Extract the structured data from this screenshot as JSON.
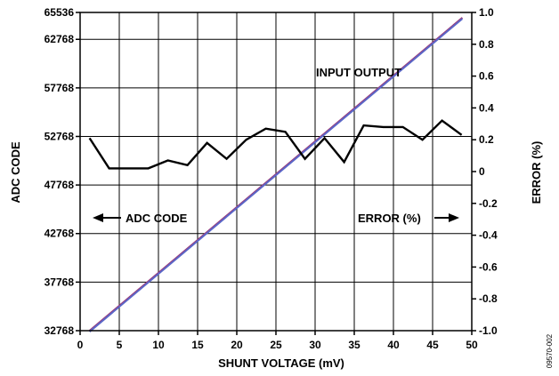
{
  "chart_data": {
    "type": "line",
    "title": "",
    "xlabel": "SHUNT VOLTAGE (mV)",
    "ylabel": "ADC CODE",
    "y2label": "ERROR (%)",
    "xlim": [
      0,
      50
    ],
    "ylim": [
      32768,
      65536
    ],
    "y2lim": [
      -1.0,
      1.0
    ],
    "grid": true,
    "x_ticks": [
      "0",
      "5",
      "10",
      "15",
      "20",
      "25",
      "30",
      "35",
      "40",
      "45",
      "50"
    ],
    "y_ticks": [
      "32768",
      "37768",
      "42768",
      "47768",
      "52768",
      "57768",
      "62768",
      "65536"
    ],
    "y2_ticks": [
      "1.0",
      "0.8",
      "0.6",
      "0.4",
      "0.2",
      "0",
      "-0.2",
      "-0.4",
      "-0.6",
      "-0.8",
      "-1.0"
    ],
    "annotations": {
      "input_output": "INPUT OUTPUT",
      "adc_code": "ADC CODE",
      "error": "ERROR (%)"
    },
    "figure_id": "09570-002",
    "series": [
      {
        "axis": "left",
        "color": "#9b3a7a",
        "x": [
          1.2,
          48.8
        ],
        "y": [
          32768,
          65000
        ]
      },
      {
        "axis": "left",
        "color": "#5a67c8",
        "x": [
          1.2,
          48.8
        ],
        "y": [
          32768,
          65000
        ]
      },
      {
        "axis": "right",
        "color": "#000000",
        "x": [
          1.2,
          3.7,
          6.2,
          8.7,
          11.2,
          13.7,
          16.2,
          18.7,
          21.2,
          23.7,
          26.2,
          28.7,
          31.2,
          33.7,
          36.2,
          38.7,
          41.2,
          43.7,
          46.2,
          48.7
        ],
        "y": [
          0.21,
          0.02,
          0.02,
          0.02,
          0.07,
          0.04,
          0.18,
          0.08,
          0.2,
          0.27,
          0.25,
          0.08,
          0.21,
          0.06,
          0.29,
          0.28,
          0.28,
          0.2,
          0.32,
          0.23
        ]
      }
    ]
  }
}
